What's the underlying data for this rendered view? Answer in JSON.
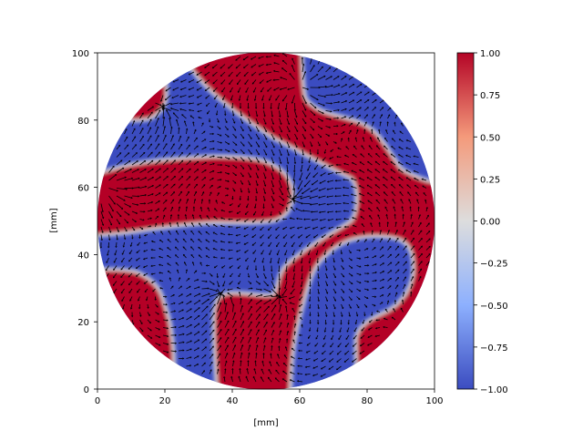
{
  "chart_data": {
    "type": "heatmap",
    "title": "",
    "xlabel": "[mm]",
    "ylabel": "[mm]",
    "xlim": [
      0,
      100
    ],
    "ylim": [
      0,
      100
    ],
    "xticks": [
      "0",
      "20",
      "40",
      "60",
      "80",
      "100"
    ],
    "yticks": [
      "0",
      "20",
      "40",
      "60",
      "80",
      "100"
    ],
    "grid": false,
    "overlay": "quiver",
    "colormap": "coolwarm",
    "colorbar": {
      "range": [
        -1,
        1
      ],
      "ticks": [
        "1.00",
        "0.75",
        "0.50",
        "0.25",
        "0.00",
        "−0.25",
        "−0.50",
        "−0.75",
        "−1.00"
      ],
      "placement": "right"
    },
    "colors": {
      "high": "#b40426",
      "low": "#3b4cc0",
      "mid": "#dddddd"
    }
  }
}
